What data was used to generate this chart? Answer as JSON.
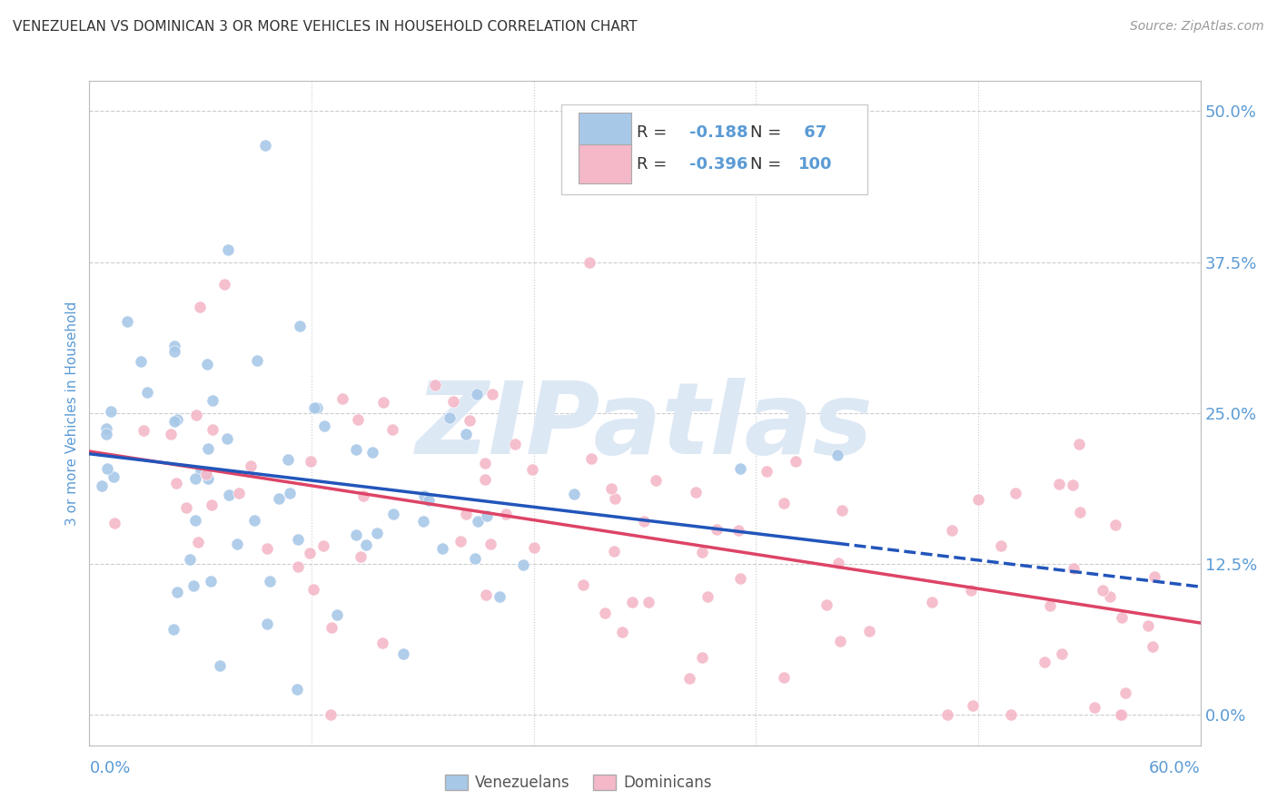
{
  "title": "VENEZUELAN VS DOMINICAN 3 OR MORE VEHICLES IN HOUSEHOLD CORRELATION CHART",
  "source": "Source: ZipAtlas.com",
  "ylabel": "3 or more Vehicles in Household",
  "yticks": [
    0.0,
    0.125,
    0.25,
    0.375,
    0.5
  ],
  "ytick_labels": [
    "0.0%",
    "12.5%",
    "25.0%",
    "37.5%",
    "50.0%"
  ],
  "xmin": 0.0,
  "xmax": 0.6,
  "ymin": -0.025,
  "ymax": 0.525,
  "venezuelan_R": -0.188,
  "venezuelan_N": 67,
  "dominican_R": -0.396,
  "dominican_N": 100,
  "venezuelan_color": "#a8c8e8",
  "dominican_color": "#f4b8c8",
  "trend_venezuelan_color": "#2255bb",
  "trend_dominican_color": "#dd4466",
  "background_color": "#ffffff",
  "grid_color": "#cccccc",
  "watermark_color": "#dde8f5",
  "title_color": "#333333",
  "axis_label_color": "#5b9bd5",
  "tick_label_color": "#5b9bd5",
  "legend_R_color": "#5b9bd5",
  "legend_N_color": "#5b9bd5",
  "seed": 7
}
